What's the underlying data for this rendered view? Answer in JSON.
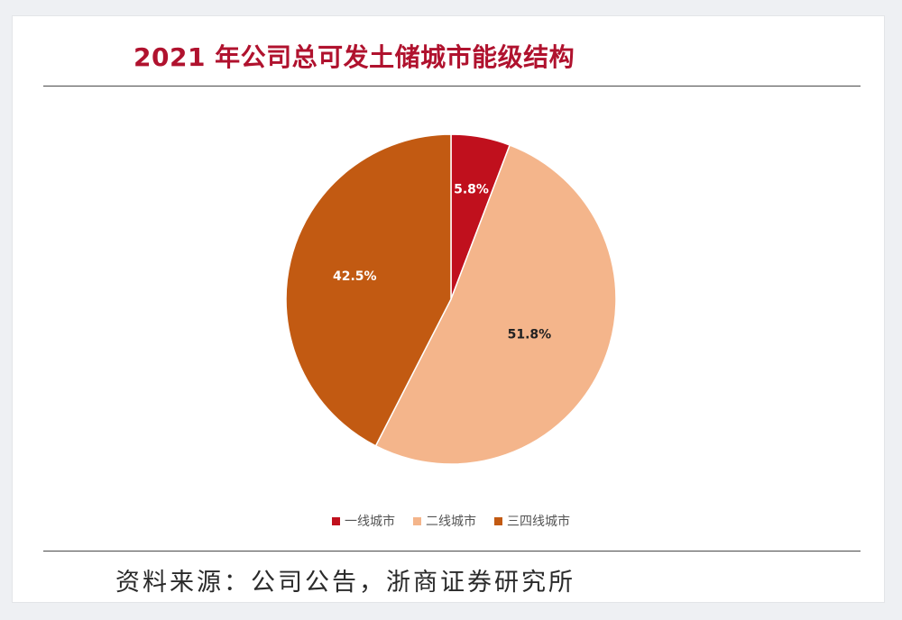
{
  "chart_data": {
    "type": "pie",
    "title": "2021 年公司总可发土储城市能级结构",
    "slices": [
      {
        "name": "一线城市",
        "value": 5.8,
        "label": "5.8%",
        "color": "#c0101d",
        "label_color": "#ffffff"
      },
      {
        "name": "二线城市",
        "value": 51.8,
        "label": "51.8%",
        "color": "#f4b58b",
        "label_color": "#222222"
      },
      {
        "name": "三四线城市",
        "value": 42.5,
        "label": "42.5%",
        "color": "#c25a12",
        "label_color": "#ffffff"
      }
    ],
    "legend_position": "bottom",
    "start_angle_deg": 0,
    "direction": "clockwise"
  },
  "source_note": "资料来源：公司公告，浙商证券研究所"
}
